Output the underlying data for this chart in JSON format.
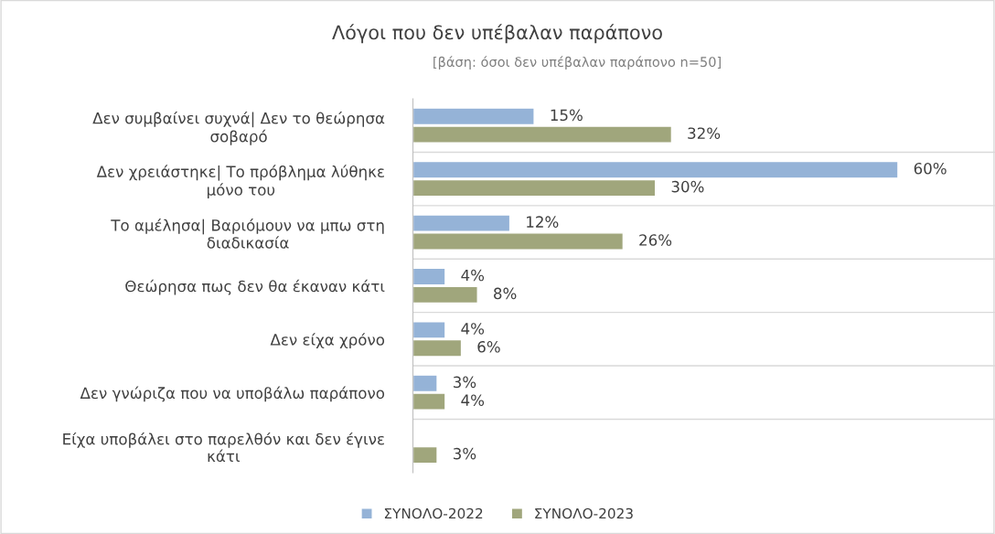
{
  "chart_data": {
    "type": "bar",
    "orientation": "horizontal",
    "title": "Λόγοι που δεν υπέβαλαν παράπονο",
    "subtitle": "[βάση: όσοι δεν υπέβαλαν παράπονο n=50]",
    "categories": [
      "Δεν συμβαίνει συχνά| Δεν το θεώρησα\nσοβαρό",
      "Δεν χρειάστηκε| Το πρόβλημα λύθηκε\nμόνο του",
      "Το αμέλησα| Βαριόμουν να μπω στη\nδιαδικασία",
      "Θεώρησα πως δεν θα έκαναν κάτι",
      "Δεν είχα χρόνο",
      "Δεν γνώριζα που να υποβάλω παράπονο",
      "Είχα υποβάλει στο παρελθόν και δεν έγινε\nκάτι"
    ],
    "series": [
      {
        "name": "ΣΥΝΟΛΟ-2022",
        "color": "#95b3d7",
        "values": [
          15,
          60,
          12,
          4,
          4,
          3,
          null
        ],
        "value_labels": [
          "15%",
          "60%",
          "12%",
          "4%",
          "4%",
          "3%",
          null
        ]
      },
      {
        "name": "ΣΥΝΟΛΟ-2023",
        "color": "#a0a67c",
        "values": [
          32,
          30,
          26,
          8,
          6,
          4,
          3
        ],
        "value_labels": [
          "32%",
          "30%",
          "26%",
          "8%",
          "6%",
          "4%",
          "3%"
        ]
      }
    ],
    "grid": "y",
    "legend": "bottom",
    "tick_labels": "y"
  }
}
